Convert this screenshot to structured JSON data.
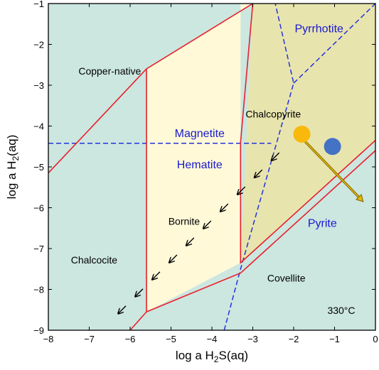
{
  "chart_data": {
    "type": "phase-diagram",
    "title": "",
    "xlabel": {
      "main": "log a H",
      "sub": "2",
      "tail": "S(aq)"
    },
    "ylabel": {
      "main": "log a H",
      "sub": "2",
      "tail": "(aq)"
    },
    "xlim": [
      -8,
      0
    ],
    "ylim": [
      -9,
      -1
    ],
    "xticks": [
      -8,
      -7,
      -6,
      -5,
      -4,
      -3,
      -2,
      -1,
      0
    ],
    "yticks": [
      -9,
      -8,
      -7,
      -6,
      -5,
      -4,
      -3,
      -2,
      -1
    ],
    "grid": false,
    "annotation": "330°C",
    "colors": {
      "background": "#cce6e0",
      "bornite_field": "#fff9d8",
      "chalcopyrite_field": "#e8e4ae",
      "red_boundary": "#e8202a",
      "blue_boundary": "#2233dd",
      "orange_marker": "#f9b80c",
      "blue_marker": "#4472c4",
      "arrow_fill": "#e0b800",
      "arrow_edge": "#806000",
      "label_black": "#000000",
      "label_blue": "#1a1acc"
    },
    "fields": [
      {
        "name": "Copper-native",
        "x": -6.5,
        "y": -2.65,
        "color": "black"
      },
      {
        "name": "Chalcocite",
        "x": -6.88,
        "y": -7.28,
        "color": "black"
      },
      {
        "name": "Bornite",
        "x": -4.68,
        "y": -6.33,
        "color": "black"
      },
      {
        "name": "Chalcopyrite",
        "x": -2.5,
        "y": -3.7,
        "color": "black"
      },
      {
        "name": "Covellite",
        "x": -2.18,
        "y": -7.72,
        "color": "black"
      },
      {
        "name": "Magnetite",
        "x": -4.3,
        "y": -4.18,
        "color": "blue"
      },
      {
        "name": "Hematite",
        "x": -4.3,
        "y": -4.95,
        "color": "blue"
      },
      {
        "name": "Pyrrhotite",
        "x": -1.38,
        "y": -1.62,
        "color": "blue"
      },
      {
        "name": "Pyrite",
        "x": -1.3,
        "y": -6.38,
        "color": "blue"
      }
    ],
    "regions": {
      "bornite": [
        [
          -5.6,
          -8.55
        ],
        [
          -5.6,
          -2.6
        ],
        [
          -3.0,
          -1.0
        ],
        [
          -3.3,
          -1.0
        ],
        [
          -3.3,
          -7.35
        ],
        [
          -3.3,
          -7.35
        ]
      ],
      "chalcopyrite": [
        [
          -3.0,
          -1.0
        ],
        [
          0.0,
          -1.0
        ],
        [
          0.0,
          -4.35
        ],
        [
          -3.3,
          -7.35
        ]
      ]
    },
    "red_boundaries": [
      [
        [
          -8.0,
          -5.15
        ],
        [
          -5.6,
          -2.6
        ],
        [
          -3.0,
          -1.0
        ]
      ],
      [
        [
          -5.6,
          -2.6
        ],
        [
          -5.6,
          -8.55
        ],
        [
          -6.0,
          -9.0
        ]
      ],
      [
        [
          -5.6,
          -8.55
        ],
        [
          -3.3,
          -7.6
        ],
        [
          0.0,
          -4.6
        ]
      ],
      [
        [
          -3.0,
          -1.0
        ],
        [
          -3.3,
          -4.4
        ],
        [
          -3.3,
          -7.35
        ],
        [
          0.0,
          -4.35
        ]
      ]
    ],
    "blue_boundaries": [
      [
        [
          -8.0,
          -4.42
        ],
        [
          -2.55,
          -4.42
        ]
      ],
      [
        [
          -3.7,
          -9.0
        ],
        [
          -3.3,
          -7.5
        ],
        [
          -2.0,
          -2.95
        ],
        [
          -2.45,
          -1.0
        ]
      ],
      [
        [
          -2.0,
          -2.95
        ],
        [
          0.0,
          -1.0
        ]
      ]
    ],
    "arrow_path": {
      "count": 10,
      "start": [
        -2.45,
        -4.75
      ],
      "end": [
        -6.2,
        -8.5
      ]
    },
    "markers": [
      {
        "x": -1.8,
        "y": -4.2,
        "color": "orange"
      },
      {
        "x": -1.05,
        "y": -4.5,
        "color": "blue"
      }
    ],
    "trend_arrow": {
      "from": [
        -1.75,
        -4.35
      ],
      "to": [
        -0.3,
        -5.85
      ]
    }
  }
}
